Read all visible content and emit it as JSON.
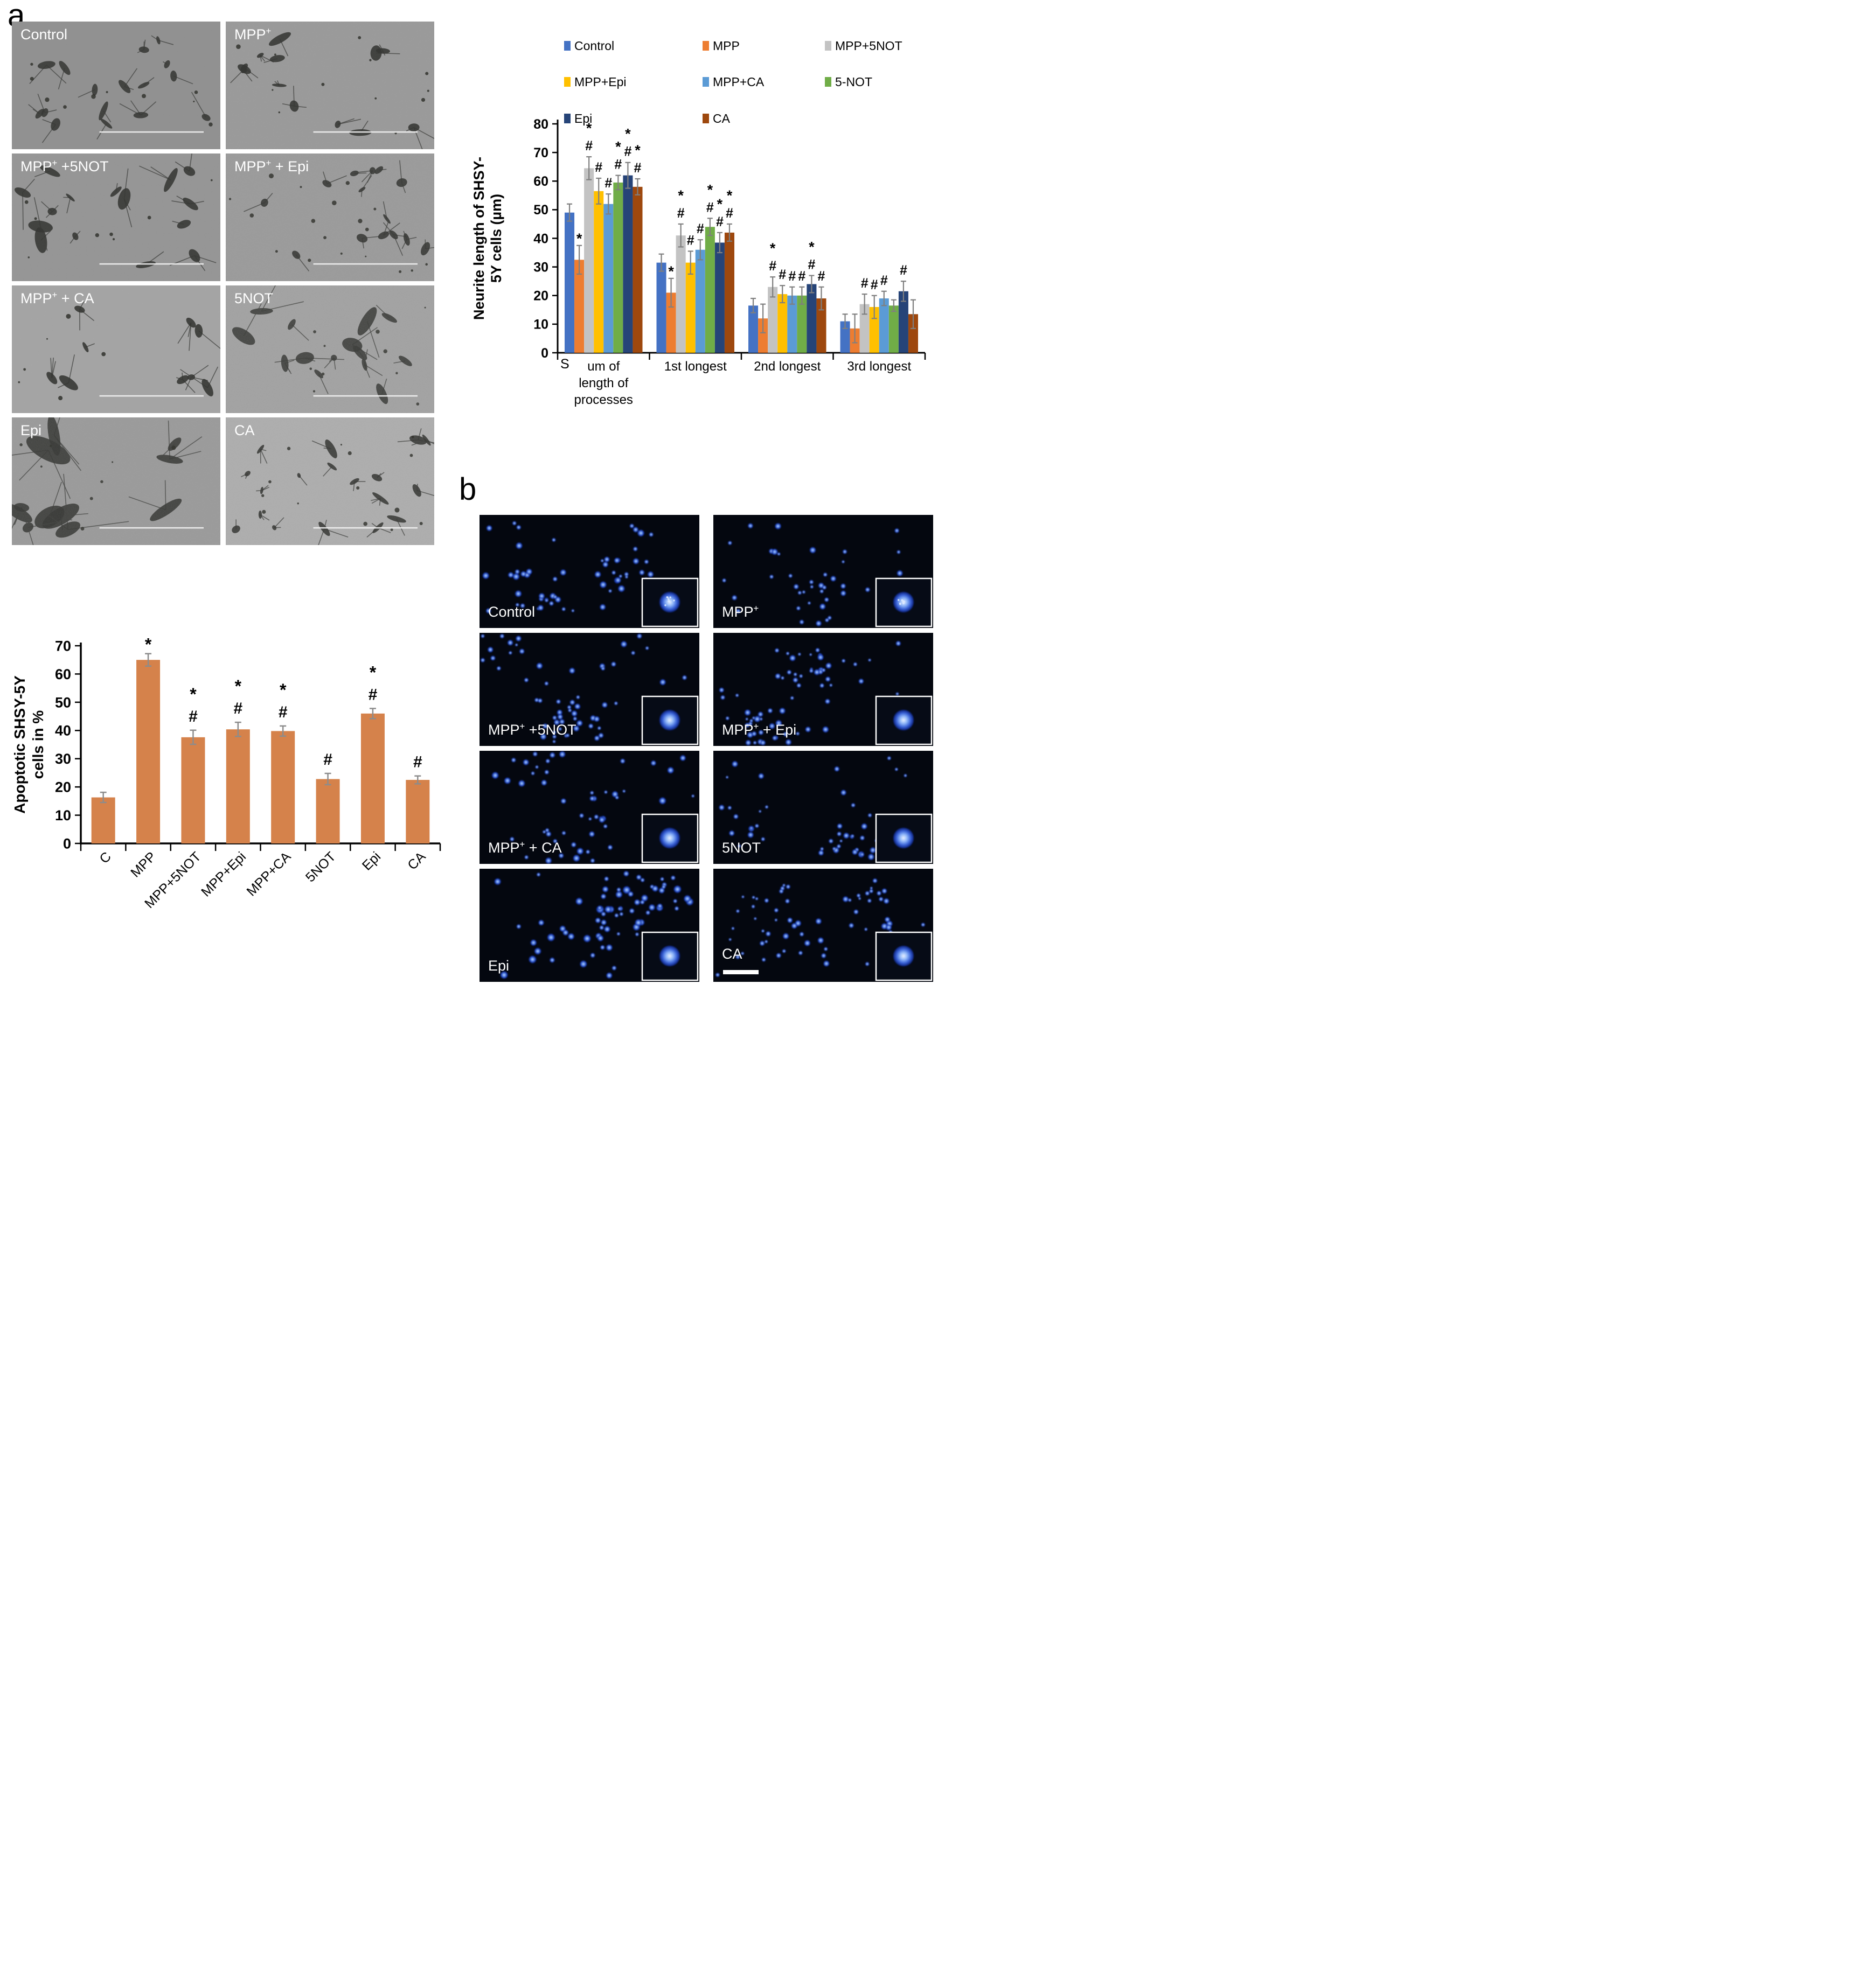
{
  "figure": {
    "panel_a_label": "a",
    "panel_b_label": "b"
  },
  "panel_a": {
    "tiles": [
      {
        "pre": "Control",
        "sup": "",
        "post": ""
      },
      {
        "pre": "MPP",
        "sup": "+",
        "post": ""
      },
      {
        "pre": "MPP",
        "sup": "+",
        "post": " +5NOT"
      },
      {
        "pre": "MPP",
        "sup": "+",
        "post": " + Epi"
      },
      {
        "pre": "MPP",
        "sup": "+",
        "post": " + CA"
      },
      {
        "pre": "5NOT",
        "sup": "",
        "post": ""
      },
      {
        "pre": "Epi",
        "sup": "",
        "post": ""
      },
      {
        "pre": "CA",
        "sup": "",
        "post": ""
      }
    ]
  },
  "panel_b": {
    "tiles": [
      {
        "pre": "Control",
        "sup": "",
        "post": ""
      },
      {
        "pre": "MPP",
        "sup": "+",
        "post": ""
      },
      {
        "pre": "MPP",
        "sup": "+",
        "post": " +5NOT"
      },
      {
        "pre": "MPP",
        "sup": "+",
        "post": " + Epi"
      },
      {
        "pre": "MPP",
        "sup": "+",
        "post": " + CA"
      },
      {
        "pre": "5NOT",
        "sup": "",
        "post": ""
      },
      {
        "pre": "Epi",
        "sup": "",
        "post": ""
      },
      {
        "pre": "CA",
        "sup": "",
        "post": ""
      }
    ]
  },
  "chart_data": [
    {
      "id": "neurite_length",
      "type": "bar",
      "title": "",
      "ylabel_lines": [
        "Neurite length of SHSY-",
        "5Y cells (µm)"
      ],
      "ylim": [
        0,
        80
      ],
      "ytick_step": 10,
      "grid": false,
      "legend_position": "top",
      "axis_corner_label": "S",
      "categories": [
        "Sum of length of processes",
        "1st longest",
        "2nd longest",
        "3rd longest"
      ],
      "category_display": [
        [
          "um of",
          "length of",
          "processes"
        ],
        [
          "1st longest"
        ],
        [
          "2nd longest"
        ],
        [
          "3rd longest"
        ]
      ],
      "error_color": "#7F7F7F",
      "legend_rows": [
        [
          "Control",
          "MPP",
          "MPP+5NOT"
        ],
        [
          "MPP+Epi",
          "MPP+CA",
          "5-NOT"
        ],
        [
          "Epi",
          "CA"
        ]
      ],
      "series": [
        {
          "name": "Control",
          "color": "#4472C4",
          "values": [
            49,
            31.5,
            16.5,
            11
          ],
          "errors": [
            3,
            3,
            2.5,
            2.5
          ],
          "sig": [
            "",
            "",
            "",
            ""
          ]
        },
        {
          "name": "MPP",
          "color": "#ED7D31",
          "values": [
            32.5,
            21,
            12,
            8.5
          ],
          "errors": [
            5,
            5,
            5,
            5
          ],
          "sig": [
            "*",
            "*",
            "",
            ""
          ]
        },
        {
          "name": "MPP+5NOT",
          "color": "#C3C3C3",
          "values": [
            64.5,
            41,
            23,
            17
          ],
          "errors": [
            4,
            4,
            3.5,
            3.5
          ],
          "sig": [
            "*#",
            "*#",
            "*#",
            "#"
          ]
        },
        {
          "name": "MPP+Epi",
          "color": "#FFC000",
          "values": [
            56.5,
            31.5,
            20.5,
            16
          ],
          "errors": [
            4.5,
            4,
            3,
            4
          ],
          "sig": [
            "#",
            "#",
            "#",
            "#"
          ]
        },
        {
          "name": "MPP+CA",
          "color": "#5B9BD5",
          "values": [
            52,
            36,
            20,
            19
          ],
          "errors": [
            3.5,
            3.5,
            3,
            2.5
          ],
          "sig": [
            "#",
            "#",
            "#",
            "#"
          ]
        },
        {
          "name": "5-NOT",
          "color": "#70AD47",
          "values": [
            59.5,
            44,
            20,
            16.5
          ],
          "errors": [
            2.5,
            3,
            3,
            2
          ],
          "sig": [
            "*#",
            "*#",
            "#",
            ""
          ]
        },
        {
          "name": "Epi",
          "color": "#264478",
          "values": [
            62,
            38.5,
            24,
            21.5
          ],
          "errors": [
            4.5,
            3.5,
            3,
            3.5
          ],
          "sig": [
            "*#",
            "*#",
            "*#",
            "#"
          ]
        },
        {
          "name": "CA",
          "color": "#9E480E",
          "values": [
            58,
            42,
            19,
            13.5
          ],
          "errors": [
            2.8,
            3,
            4,
            5
          ],
          "sig": [
            "*#",
            "*#",
            "#",
            ""
          ]
        }
      ]
    },
    {
      "id": "apoptotic_cells",
      "type": "bar",
      "title": "",
      "ylabel_lines": [
        "Apoptotic SHSY-5Y",
        "cells in %"
      ],
      "ylim": [
        0,
        70
      ],
      "ytick_step": 10,
      "grid": false,
      "bar_color": "#D5824B",
      "error_color": "#8C8C8C",
      "categories": [
        "C",
        "MPP",
        "MPP+5NOT",
        "MPP+Epi",
        "MPP+CA",
        "5NOT",
        "Epi",
        "CA"
      ],
      "values": [
        16.3,
        65,
        37.6,
        40.4,
        39.8,
        22.8,
        46,
        22.5
      ],
      "errors": [
        1.8,
        2.2,
        2.5,
        2.5,
        1.8,
        2,
        1.8,
        1.4
      ],
      "sig": [
        "",
        "*",
        "*#",
        "*#",
        "*#",
        "#",
        "*#",
        "#"
      ]
    }
  ]
}
